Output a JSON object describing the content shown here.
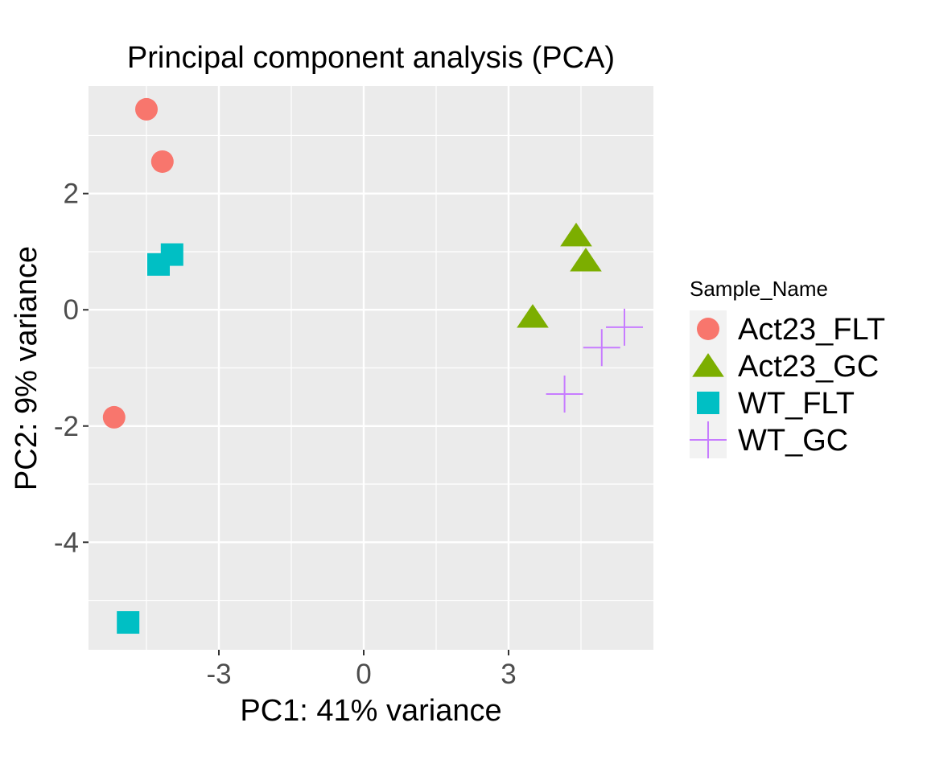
{
  "chart_data": {
    "type": "scatter",
    "title": "Principal component analysis (PCA)",
    "xlabel": "PC1: 41% variance",
    "ylabel": "PC2: 9% variance",
    "xlim": [
      -5.7,
      6.0
    ],
    "ylim": [
      -5.85,
      3.85
    ],
    "xticks": [
      -3,
      0,
      3
    ],
    "xtick_labels": [
      "-3",
      "0",
      "3"
    ],
    "yticks": [
      2,
      0,
      -2,
      -4
    ],
    "ytick_labels": [
      "2",
      "0",
      "-2",
      "-4"
    ],
    "grid": true,
    "legend": {
      "title": "Sample_Name",
      "position": "right"
    },
    "series": [
      {
        "name": "Act23_FLT",
        "shape": "circle",
        "color": "#F8766D",
        "points": [
          [
            -4.5,
            3.45
          ],
          [
            -4.17,
            2.55
          ],
          [
            -5.17,
            -1.85
          ]
        ]
      },
      {
        "name": "Act23_GC",
        "shape": "triangle",
        "color": "#7CAE00",
        "points": [
          [
            4.4,
            1.28
          ],
          [
            4.6,
            0.85
          ],
          [
            3.5,
            -0.12
          ]
        ]
      },
      {
        "name": "WT_FLT",
        "shape": "square",
        "color": "#00BFC4",
        "points": [
          [
            -3.97,
            0.95
          ],
          [
            -4.25,
            0.78
          ],
          [
            -4.88,
            -5.38
          ]
        ]
      },
      {
        "name": "WT_GC",
        "shape": "plus",
        "color": "#C77CFF",
        "points": [
          [
            5.4,
            -0.3
          ],
          [
            4.93,
            -0.65
          ],
          [
            4.16,
            -1.45
          ]
        ]
      }
    ]
  }
}
